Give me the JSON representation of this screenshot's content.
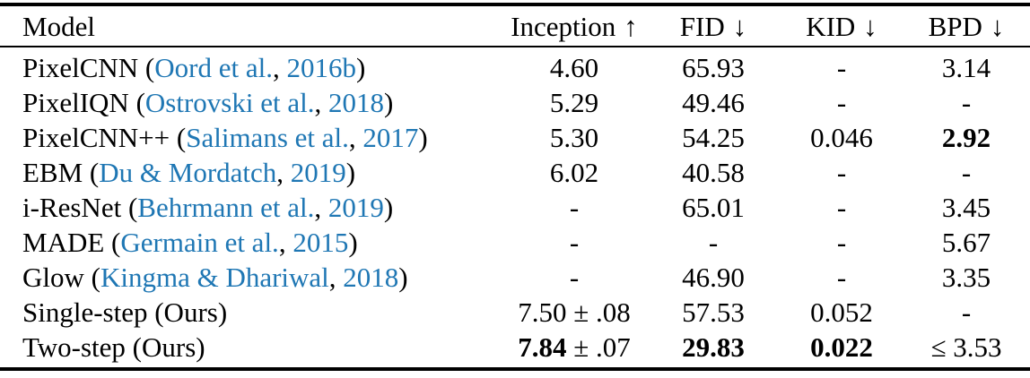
{
  "table": {
    "link_color": "#1f77b4",
    "text_color": "#000000",
    "columns": [
      {
        "key": "model",
        "label": "Model",
        "arrow": "",
        "align": "left"
      },
      {
        "key": "inception",
        "label": "Inception",
        "arrow": "↑",
        "align": "center"
      },
      {
        "key": "fid",
        "label": "FID",
        "arrow": "↓",
        "align": "center"
      },
      {
        "key": "kid",
        "label": "KID",
        "arrow": "↓",
        "align": "center"
      },
      {
        "key": "bpd",
        "label": "BPD",
        "arrow": "↓",
        "align": "center"
      }
    ],
    "rows": [
      {
        "model": [
          {
            "t": "PixelCNN ("
          },
          {
            "t": "Oord et al.",
            "link": true
          },
          {
            "t": ", "
          },
          {
            "t": "2016b",
            "link": true
          },
          {
            "t": ")"
          }
        ],
        "inception": [
          {
            "t": "4.60"
          }
        ],
        "fid": [
          {
            "t": "65.93"
          }
        ],
        "kid": [
          {
            "t": "-"
          }
        ],
        "bpd": [
          {
            "t": "3.14"
          }
        ]
      },
      {
        "model": [
          {
            "t": "PixelIQN ("
          },
          {
            "t": "Ostrovski et al.",
            "link": true
          },
          {
            "t": ", "
          },
          {
            "t": "2018",
            "link": true
          },
          {
            "t": ")"
          }
        ],
        "inception": [
          {
            "t": "5.29"
          }
        ],
        "fid": [
          {
            "t": "49.46"
          }
        ],
        "kid": [
          {
            "t": "-"
          }
        ],
        "bpd": [
          {
            "t": "-"
          }
        ]
      },
      {
        "model": [
          {
            "t": "PixelCNN++ ("
          },
          {
            "t": "Salimans et al.",
            "link": true
          },
          {
            "t": ", "
          },
          {
            "t": "2017",
            "link": true
          },
          {
            "t": ")"
          }
        ],
        "inception": [
          {
            "t": "5.30"
          }
        ],
        "fid": [
          {
            "t": "54.25"
          }
        ],
        "kid": [
          {
            "t": "0.046"
          }
        ],
        "bpd": [
          {
            "t": "2.92",
            "b": true
          }
        ]
      },
      {
        "model": [
          {
            "t": "EBM ("
          },
          {
            "t": "Du & Mordatch",
            "link": true
          },
          {
            "t": ", "
          },
          {
            "t": "2019",
            "link": true
          },
          {
            "t": ")"
          }
        ],
        "inception": [
          {
            "t": "6.02"
          }
        ],
        "fid": [
          {
            "t": "40.58"
          }
        ],
        "kid": [
          {
            "t": "-"
          }
        ],
        "bpd": [
          {
            "t": "-"
          }
        ]
      },
      {
        "model": [
          {
            "t": "i-ResNet ("
          },
          {
            "t": "Behrmann et al.",
            "link": true
          },
          {
            "t": ", "
          },
          {
            "t": "2019",
            "link": true
          },
          {
            "t": ")"
          }
        ],
        "inception": [
          {
            "t": "-"
          }
        ],
        "fid": [
          {
            "t": "65.01"
          }
        ],
        "kid": [
          {
            "t": "-"
          }
        ],
        "bpd": [
          {
            "t": "3.45"
          }
        ]
      },
      {
        "model": [
          {
            "t": "MADE ("
          },
          {
            "t": "Germain et al.",
            "link": true
          },
          {
            "t": ", "
          },
          {
            "t": "2015",
            "link": true
          },
          {
            "t": ")"
          }
        ],
        "inception": [
          {
            "t": "-"
          }
        ],
        "fid": [
          {
            "t": "-"
          }
        ],
        "kid": [
          {
            "t": "-"
          }
        ],
        "bpd": [
          {
            "t": "5.67"
          }
        ]
      },
      {
        "model": [
          {
            "t": "Glow ("
          },
          {
            "t": "Kingma & Dhariwal",
            "link": true
          },
          {
            "t": ", "
          },
          {
            "t": "2018",
            "link": true
          },
          {
            "t": ")"
          }
        ],
        "inception": [
          {
            "t": "-"
          }
        ],
        "fid": [
          {
            "t": "46.90"
          }
        ],
        "kid": [
          {
            "t": "-"
          }
        ],
        "bpd": [
          {
            "t": "3.35"
          }
        ]
      },
      {
        "model": [
          {
            "t": "Single-step (Ours)"
          }
        ],
        "inception": [
          {
            "t": "7.50 ± .08"
          }
        ],
        "fid": [
          {
            "t": "57.53"
          }
        ],
        "kid": [
          {
            "t": "0.052"
          }
        ],
        "bpd": [
          {
            "t": "-"
          }
        ]
      },
      {
        "model": [
          {
            "t": "Two-step (Ours)"
          }
        ],
        "inception": [
          {
            "t": "7.84",
            "b": true
          },
          {
            "t": " ± .07"
          }
        ],
        "fid": [
          {
            "t": "29.83",
            "b": true
          }
        ],
        "kid": [
          {
            "t": "0.022",
            "b": true
          }
        ],
        "bpd": [
          {
            "t": "≤ 3.53"
          }
        ]
      }
    ]
  }
}
